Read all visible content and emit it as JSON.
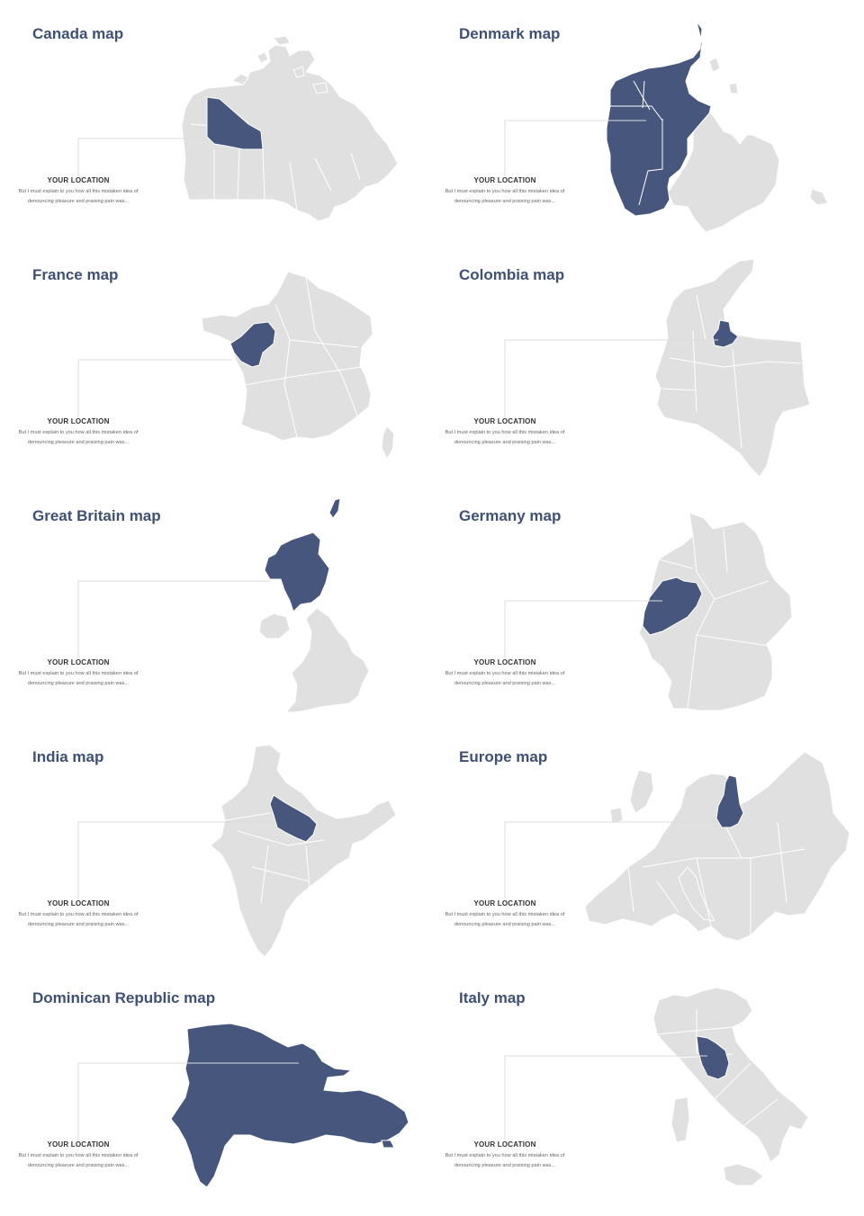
{
  "colors": {
    "highlight": "#46567c",
    "land": "#e0e0e0",
    "border": "#ffffff",
    "leader": "#dcdcdc",
    "title": "#3f5076"
  },
  "maps": [
    {
      "title": "Canada map",
      "location_title": "YOUR LOCATION",
      "desc": "But I must explain to you how all this mistaken idea of denouncing pleasure and praising pain was..."
    },
    {
      "title": "Denmark map",
      "location_title": "YOUR LOCATION",
      "desc": "But I must explain to you how all this mistaken idea of denouncing pleasure and praising pain was..."
    },
    {
      "title": "France map",
      "location_title": "YOUR LOCATION",
      "desc": "But I must explain to you how all this mistaken idea of denouncing pleasure and praising pain was..."
    },
    {
      "title": "Colombia map",
      "location_title": "YOUR LOCATION",
      "desc": "But I must explain to you how all this mistaken idea of denouncing pleasure and praising pain was..."
    },
    {
      "title": "Great Britain map",
      "location_title": "YOUR LOCATION",
      "desc": "But I must explain to you how all this mistaken idea of denouncing pleasure and praising pain was..."
    },
    {
      "title": "Germany map",
      "location_title": "YOUR LOCATION",
      "desc": "But I must explain to you how all this mistaken idea of denouncing pleasure and praising pain was..."
    },
    {
      "title": "India map",
      "location_title": "YOUR LOCATION",
      "desc": "But I must explain to you how all this mistaken idea of denouncing pleasure and praising pain was..."
    },
    {
      "title": "Europe map",
      "location_title": "YOUR LOCATION",
      "desc": "But I must explain to you how all this mistaken idea of denouncing pleasure and praising pain was..."
    },
    {
      "title": "Dominican Republic map",
      "location_title": "YOUR LOCATION",
      "desc": "But I must explain to you how all this mistaken idea of denouncing pleasure and praising pain was..."
    },
    {
      "title": "Italy map",
      "location_title": "YOUR LOCATION",
      "desc": "But I must explain to you how all this mistaken idea of denouncing pleasure and praising pain was..."
    }
  ]
}
